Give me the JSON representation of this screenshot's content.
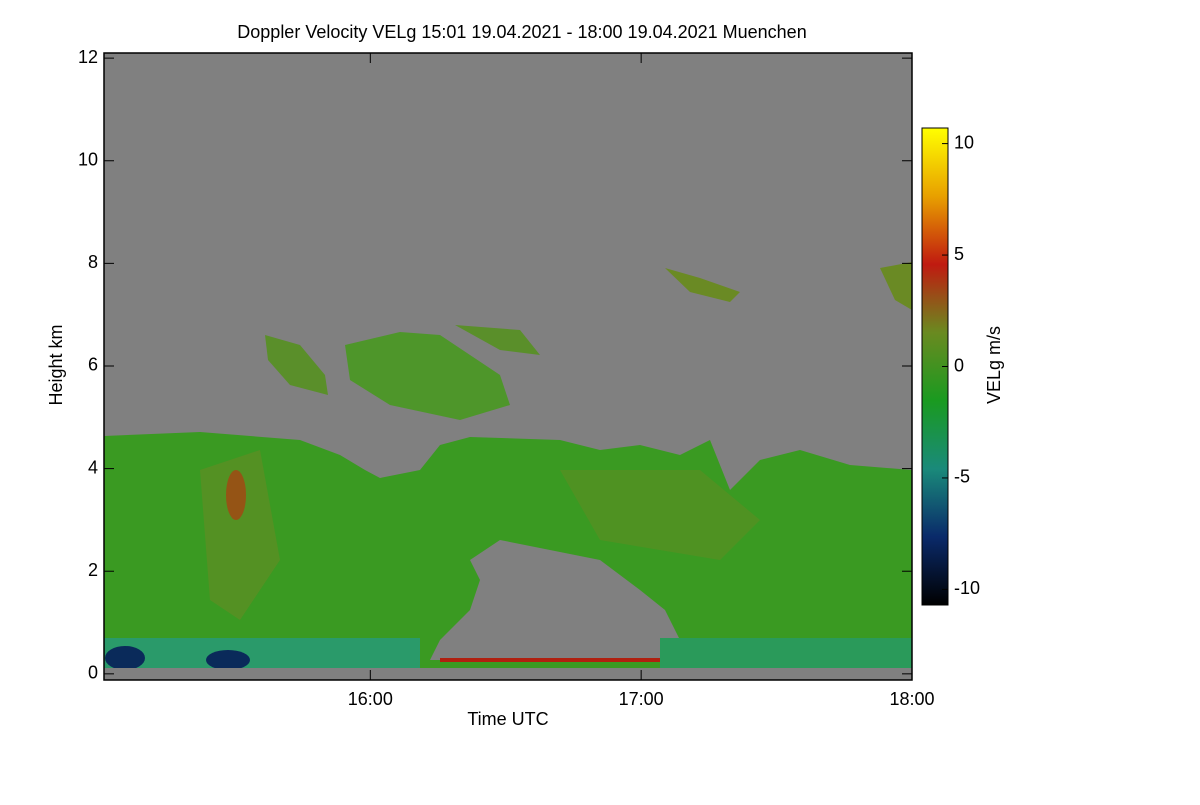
{
  "chart_data": {
    "type": "heatmap",
    "title": "Doppler Velocity VELg   15:01 19.04.2021 - 18:00 19.04.2021 Muenchen",
    "x_label": "Time UTC",
    "y_label": "Height km",
    "xlim": [
      15.0167,
      18.0
    ],
    "xticks": [
      {
        "value": 16,
        "label": "16:00"
      },
      {
        "value": 17,
        "label": "17:00"
      },
      {
        "value": 18,
        "label": "18:00"
      }
    ],
    "ylim": [
      -0.12,
      12.1
    ],
    "yticks": [
      0,
      2,
      4,
      6,
      8,
      10,
      12
    ],
    "colorbar": {
      "label": "VELg m/s",
      "clim": [
        -10.7,
        10.7
      ],
      "ticks": [
        -10,
        -5,
        0,
        5,
        10
      ],
      "colors": [
        "#000000",
        "#0a2a6a",
        "#1a8a7a",
        "#1a9a20",
        "#6a8a20",
        "#c01a10",
        "#e8a000",
        "#ffff00"
      ]
    }
  }
}
